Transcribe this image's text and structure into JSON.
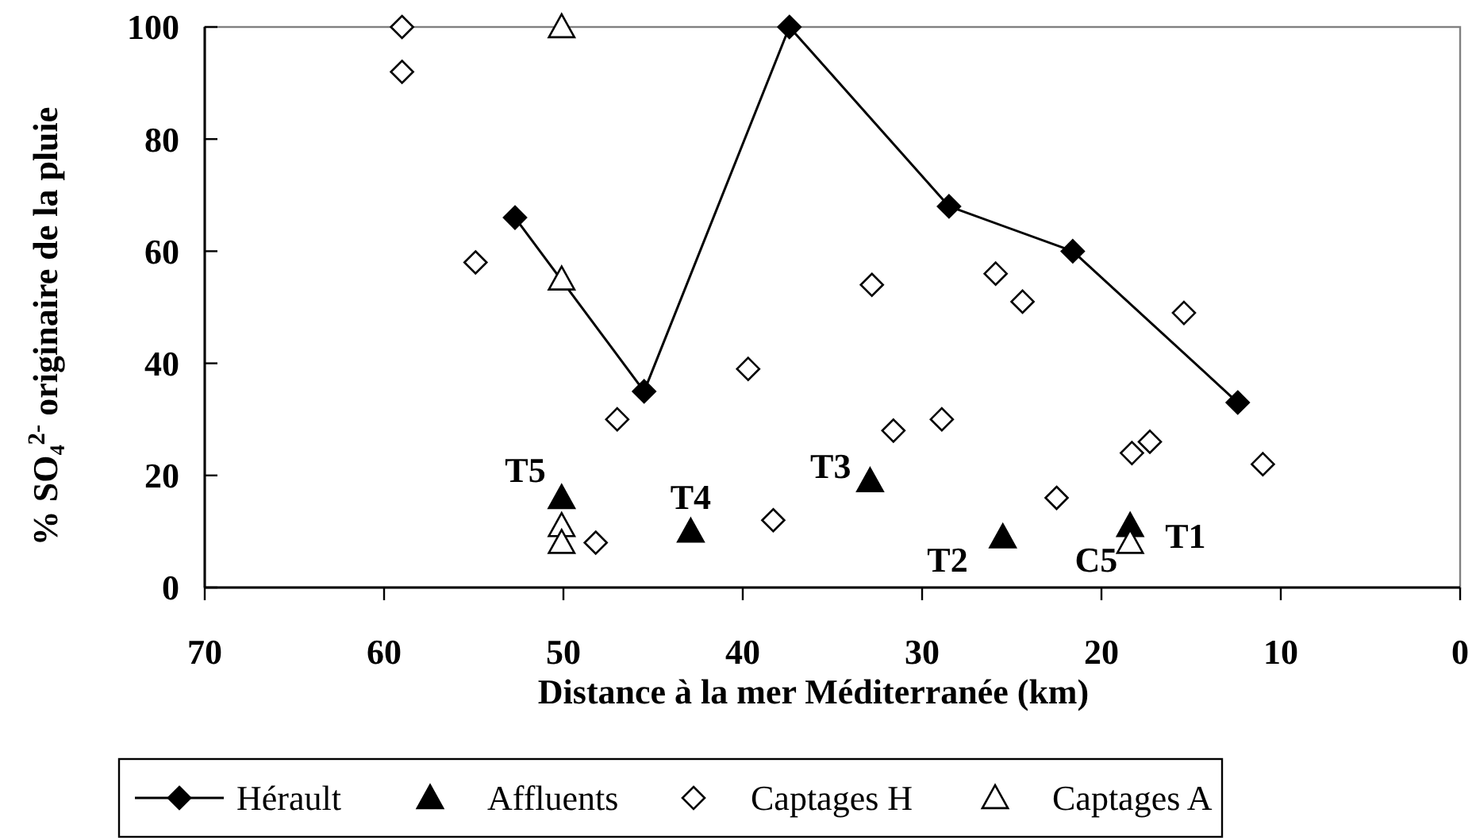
{
  "chart_data": {
    "type": "scatter",
    "xlabel": "Distance à la mer Méditerranée (km)",
    "ylabel": "% SO₄$^{2-}$ originaire de la pluie",
    "xlim": [
      70,
      0
    ],
    "xticks": [
      70,
      60,
      50,
      40,
      30,
      20,
      10,
      0
    ],
    "ylim": [
      0,
      100
    ],
    "yticks": [
      0,
      20,
      40,
      60,
      80,
      100
    ],
    "grid": false,
    "legend": "bottom",
    "series": [
      {
        "name": "Hérault",
        "type": "line",
        "marker": "diamond",
        "color": "#000000",
        "x": [
          52.7,
          45.5,
          37.4,
          28.5,
          21.6,
          12.4
        ],
        "values": [
          66,
          35,
          100,
          68,
          60,
          33
        ]
      },
      {
        "name": "Affluents",
        "marker": "triangle",
        "color": "#000000",
        "x": [
          50.1,
          42.9,
          32.9,
          25.5,
          18.4
        ],
        "values": [
          16,
          10,
          19,
          9,
          11
        ]
      },
      {
        "name": "Captages H",
        "marker": "diamond",
        "color": "#ffffff",
        "x": [
          59.0,
          59.0,
          54.9,
          47.0,
          48.2,
          39.7,
          38.3,
          32.8,
          31.6,
          28.9,
          25.9,
          24.4,
          22.5,
          18.3,
          17.3,
          15.4,
          11.0
        ],
        "values": [
          100,
          92,
          58,
          30,
          8,
          39,
          12,
          54,
          28,
          30,
          56,
          51,
          16,
          24,
          26,
          49,
          22
        ]
      },
      {
        "name": "Captages A",
        "marker": "triangle",
        "color": "#ffffff",
        "x": [
          50.1,
          50.1,
          50.1,
          50.1,
          18.4
        ],
        "values": [
          100,
          55,
          11,
          8,
          8
        ]
      }
    ],
    "annotations": [
      {
        "text": "T5",
        "x": 50.1,
        "y": 16
      },
      {
        "text": "T4",
        "x": 42.9,
        "y": 10
      },
      {
        "text": "T3",
        "x": 32.9,
        "y": 19
      },
      {
        "text": "T2",
        "x": 25.5,
        "y": 9
      },
      {
        "text": "T1",
        "x": 18.4,
        "y": 11
      },
      {
        "text": "C5",
        "x": 18.4,
        "y": 8
      }
    ]
  }
}
